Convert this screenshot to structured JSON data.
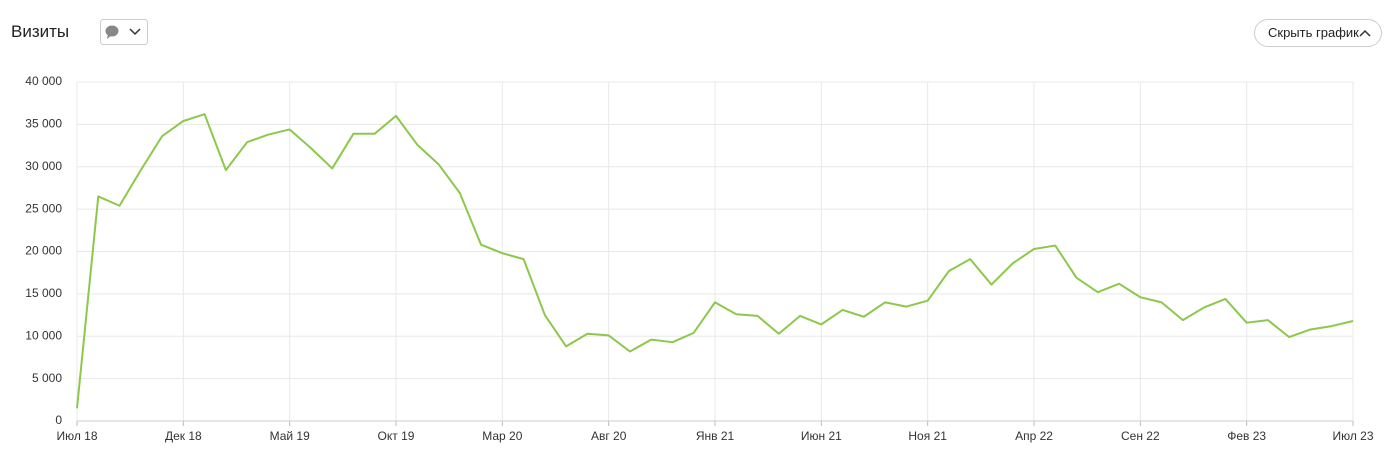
{
  "header": {
    "title": "Визиты",
    "button": "Скрыть график"
  },
  "chart_data": {
    "type": "line",
    "categories": [
      "Июл 18",
      null,
      null,
      null,
      null,
      "Дек 18",
      null,
      null,
      null,
      null,
      "Май 19",
      null,
      null,
      null,
      null,
      "Окт 19",
      null,
      null,
      null,
      null,
      "Мар 20",
      null,
      null,
      null,
      null,
      "Авг 20",
      null,
      null,
      null,
      null,
      "Янв 21",
      null,
      null,
      null,
      null,
      "Июн 21",
      null,
      null,
      null,
      null,
      "Ноя 21",
      null,
      null,
      null,
      null,
      "Апр 22",
      null,
      null,
      null,
      null,
      "Сен 22",
      null,
      null,
      null,
      null,
      "Фев 23",
      null,
      null,
      null,
      null,
      "Июл 23"
    ],
    "series": [
      {
        "color": "#8cc84b",
        "values": [
          1500,
          26500,
          25400,
          29600,
          33600,
          35400,
          36200,
          29600,
          32900,
          33800,
          34400,
          32200,
          29800,
          33900,
          33900,
          36000,
          32600,
          30300,
          26900,
          20800,
          19800,
          19100,
          12500,
          8800,
          10300,
          10100,
          8200,
          9600,
          9300,
          10400,
          14000,
          12600,
          12400,
          10300,
          12400,
          11400,
          13100,
          12300,
          14000,
          13500,
          14200,
          17700,
          19100,
          16100,
          18600,
          20300,
          20700,
          16900,
          15200,
          16200,
          14600,
          14000,
          11900,
          13400,
          14400,
          11600,
          11900,
          9900,
          10800,
          11200,
          11800
        ]
      }
    ],
    "ylim": [
      0,
      40000
    ],
    "yticks": [
      0,
      {
        "value": 5000,
        "label": "5 000"
      },
      {
        "value": 10000,
        "label": "10 000"
      },
      {
        "value": 15000,
        "label": "15 000"
      },
      {
        "value": 20000,
        "label": "20 000"
      },
      {
        "value": 25000,
        "label": "25 000"
      },
      {
        "value": 30000,
        "label": "30 000"
      },
      {
        "value": 35000,
        "label": "35 000"
      },
      {
        "value": 40000,
        "label": "40 000"
      }
    ],
    "grid": true
  }
}
